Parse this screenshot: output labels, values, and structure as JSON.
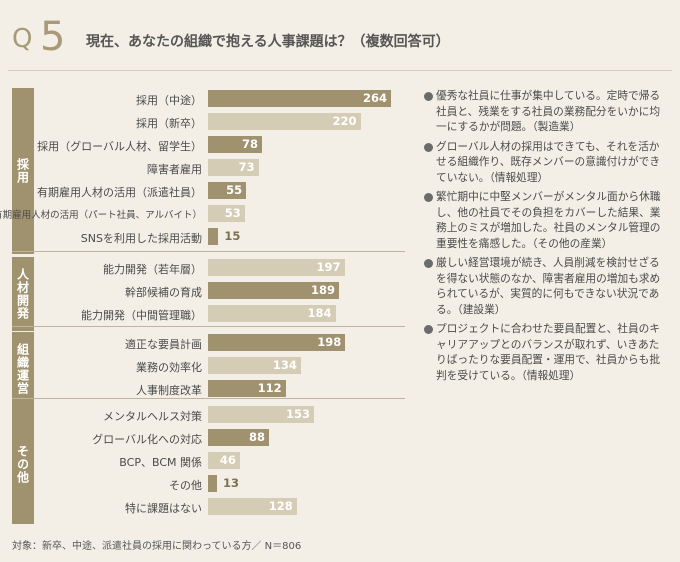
{
  "header": {
    "q_prefix": "Q",
    "q_number": "5",
    "title": "現在、あなたの組織で抱える人事課題は？（複数回答可）"
  },
  "colors": {
    "dark_bar": "#a0926f",
    "light_bar": "#d5ccb5",
    "group_tab": "#a0926f"
  },
  "chart_data": {
    "type": "bar",
    "orientation": "horizontal",
    "xlim": [
      0,
      264
    ],
    "groups": [
      {
        "name": "採用",
        "items": [
          {
            "label": "採用（中途）",
            "value": 264,
            "emphasis": true
          },
          {
            "label": "採用（新卒）",
            "value": 220,
            "emphasis": false
          },
          {
            "label": "採用（グローバル人材、留学生）",
            "value": 78,
            "emphasis": true
          },
          {
            "label": "障害者雇用",
            "value": 73,
            "emphasis": false
          },
          {
            "label": "有期雇用人材の活用（派遣社員）",
            "value": 55,
            "emphasis": true
          },
          {
            "label": "有期雇用人材の活用（パート社員、アルバイト）",
            "value": 53,
            "emphasis": false
          },
          {
            "label": "SNSを利用した採用活動",
            "value": 15,
            "emphasis": true
          }
        ]
      },
      {
        "name": "人材開発",
        "items": [
          {
            "label": "能力開発（若年層）",
            "value": 197,
            "emphasis": false
          },
          {
            "label": "幹部候補の育成",
            "value": 189,
            "emphasis": true
          },
          {
            "label": "能力開発（中間管理職）",
            "value": 184,
            "emphasis": false
          }
        ]
      },
      {
        "name": "組織運営",
        "items": [
          {
            "label": "適正な要員計画",
            "value": 198,
            "emphasis": true
          },
          {
            "label": "業務の効率化",
            "value": 134,
            "emphasis": false
          },
          {
            "label": "人事制度改革",
            "value": 112,
            "emphasis": true
          }
        ]
      },
      {
        "name": "その他",
        "items": [
          {
            "label": "メンタルヘルス対策",
            "value": 153,
            "emphasis": false
          },
          {
            "label": "グローバル化への対応",
            "value": 88,
            "emphasis": true
          },
          {
            "label": "BCP、BCM 関係",
            "value": 46,
            "emphasis": false
          },
          {
            "label": "その他",
            "value": 13,
            "emphasis": true
          },
          {
            "label": "特に課題はない",
            "value": 128,
            "emphasis": false
          }
        ]
      }
    ]
  },
  "comments": [
    "優秀な社員に仕事が集中している。定時で帰る社員と、残業をする社員の業務配分をいかに均一にするかが問題。（製造業）",
    "グローバル人材の採用はできても、それを活かせる組織作り、既存メンバーの意識付けができていない。（情報処理）",
    "繁忙期中に中堅メンバーがメンタル面から休職し、他の社員でその負担をカバーした結果、業務上のミスが増加した。社員のメンタル管理の重要性を痛感した。（その他の産業）",
    "厳しい経営環境が続き、人員削減を検討せざるを得ない状態のなか、障害者雇用の増加も求められているが、実質的に何もできない状況である。（建設業）",
    "プロジェクトに合わせた要員配置と、社員のキャリアアップとのバランスが取れず、いきあたりばったりな要員配置・運用で、社員からも批判を受けている。（情報処理）"
  ],
  "footnote": "対象：新卒、中途、派遣社員の採用に関わっている方／ N＝806"
}
